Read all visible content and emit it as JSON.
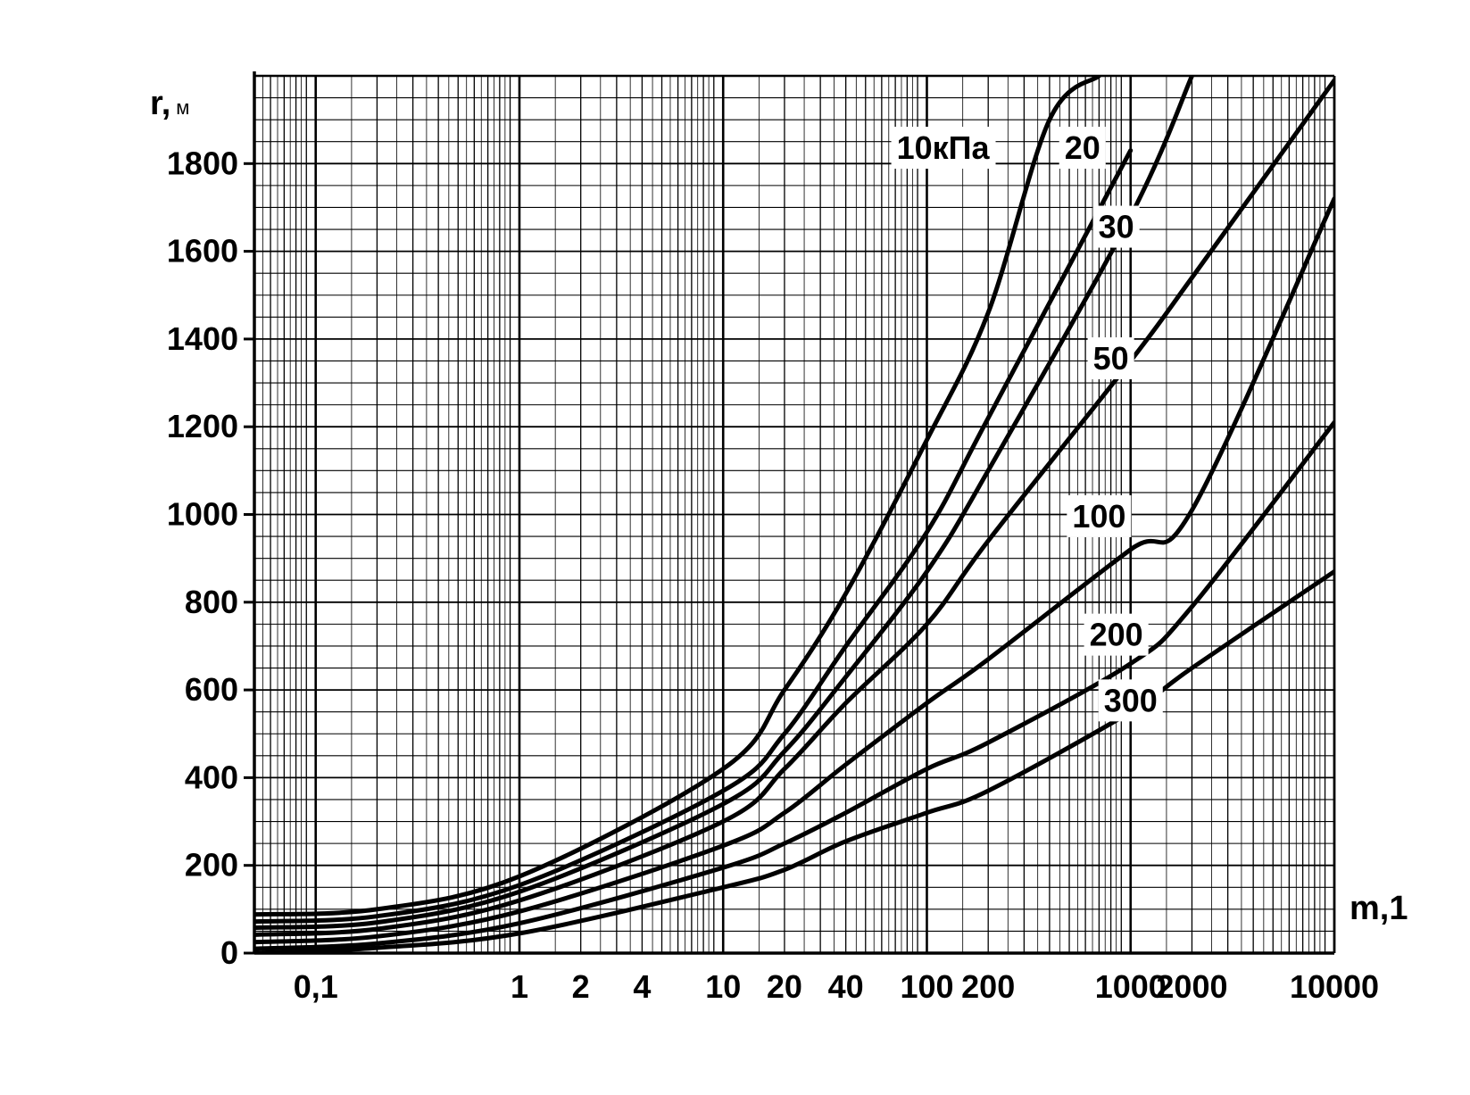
{
  "chart_data": {
    "type": "line",
    "xscale": "log",
    "xlim": [
      0.05,
      10000
    ],
    "ylim": [
      0,
      2000
    ],
    "grid": true,
    "xlabel": "m,1",
    "ylabel": "r,",
    "ylabel_unit": "м",
    "y_ticks": [
      {
        "value": 0,
        "label": "0"
      },
      {
        "value": 200,
        "label": "200"
      },
      {
        "value": 400,
        "label": "400"
      },
      {
        "value": 600,
        "label": "600"
      },
      {
        "value": 800,
        "label": "800"
      },
      {
        "value": 1000,
        "label": "1000"
      },
      {
        "value": 1200,
        "label": "1200"
      },
      {
        "value": 1400,
        "label": "1400"
      },
      {
        "value": 1600,
        "label": "1600"
      },
      {
        "value": 1800,
        "label": "1800"
      }
    ],
    "x_ticks": [
      {
        "value": 0.1,
        "label": "0,1"
      },
      {
        "value": 1,
        "label": "1"
      },
      {
        "value": 2,
        "label": "2"
      },
      {
        "value": 4,
        "label": "4"
      },
      {
        "value": 10,
        "label": "10"
      },
      {
        "value": 20,
        "label": "20"
      },
      {
        "value": 40,
        "label": "40"
      },
      {
        "value": 100,
        "label": "100"
      },
      {
        "value": 200,
        "label": "200"
      },
      {
        "value": 1000,
        "label": "1000"
      },
      {
        "value": 2000,
        "label": "2000"
      },
      {
        "value": 10000,
        "label": "10000"
      }
    ],
    "series": [
      {
        "name": "10кПа",
        "points": [
          [
            0.05,
            88
          ],
          [
            0.2,
            100
          ],
          [
            1,
            175
          ],
          [
            10,
            420
          ],
          [
            20,
            600
          ],
          [
            40,
            820
          ],
          [
            100,
            1170
          ],
          [
            200,
            1460
          ],
          [
            400,
            1900
          ],
          [
            700,
            2000
          ]
        ]
      },
      {
        "name": "20",
        "points": [
          [
            0.05,
            72
          ],
          [
            0.2,
            84
          ],
          [
            1,
            155
          ],
          [
            10,
            370
          ],
          [
            20,
            500
          ],
          [
            40,
            700
          ],
          [
            100,
            960
          ],
          [
            200,
            1220
          ],
          [
            1000,
            1830
          ]
        ]
      },
      {
        "name": "30",
        "points": [
          [
            0.05,
            58
          ],
          [
            0.2,
            70
          ],
          [
            1,
            140
          ],
          [
            10,
            340
          ],
          [
            20,
            460
          ],
          [
            40,
            630
          ],
          [
            100,
            870
          ],
          [
            200,
            1100
          ],
          [
            1000,
            1680
          ],
          [
            2000,
            2000
          ]
        ]
      },
      {
        "name": "50",
        "points": [
          [
            0.05,
            42
          ],
          [
            0.2,
            55
          ],
          [
            1,
            120
          ],
          [
            10,
            300
          ],
          [
            20,
            420
          ],
          [
            40,
            570
          ],
          [
            100,
            750
          ],
          [
            200,
            940
          ],
          [
            1000,
            1350
          ],
          [
            2000,
            1540
          ],
          [
            10000,
            1990
          ]
        ]
      },
      {
        "name": "100",
        "points": [
          [
            0.05,
            25
          ],
          [
            0.2,
            38
          ],
          [
            1,
            95
          ],
          [
            10,
            245
          ],
          [
            20,
            320
          ],
          [
            40,
            430
          ],
          [
            100,
            570
          ],
          [
            200,
            670
          ],
          [
            1000,
            920
          ],
          [
            2000,
            1010
          ],
          [
            10000,
            1720
          ]
        ]
      },
      {
        "name": "200",
        "points": [
          [
            0.05,
            10
          ],
          [
            0.2,
            22
          ],
          [
            1,
            68
          ],
          [
            10,
            195
          ],
          [
            20,
            250
          ],
          [
            40,
            320
          ],
          [
            100,
            420
          ],
          [
            200,
            480
          ],
          [
            1000,
            660
          ],
          [
            2000,
            790
          ],
          [
            10000,
            1210
          ]
        ]
      },
      {
        "name": "300",
        "points": [
          [
            0.05,
            0
          ],
          [
            0.2,
            12
          ],
          [
            1,
            45
          ],
          [
            10,
            150
          ],
          [
            20,
            190
          ],
          [
            40,
            255
          ],
          [
            100,
            320
          ],
          [
            200,
            370
          ],
          [
            1000,
            550
          ],
          [
            2000,
            650
          ],
          [
            10000,
            870
          ]
        ]
      }
    ],
    "series_labels": [
      {
        "series": "10кПа",
        "x": 120,
        "y": 1830
      },
      {
        "series": "20",
        "x": 580,
        "y": 1830
      },
      {
        "series": "30",
        "x": 850,
        "y": 1650
      },
      {
        "series": "50",
        "x": 800,
        "y": 1350
      },
      {
        "series": "100",
        "x": 700,
        "y": 990
      },
      {
        "series": "200",
        "x": 850,
        "y": 720
      },
      {
        "series": "300",
        "x": 1000,
        "y": 570
      }
    ]
  }
}
